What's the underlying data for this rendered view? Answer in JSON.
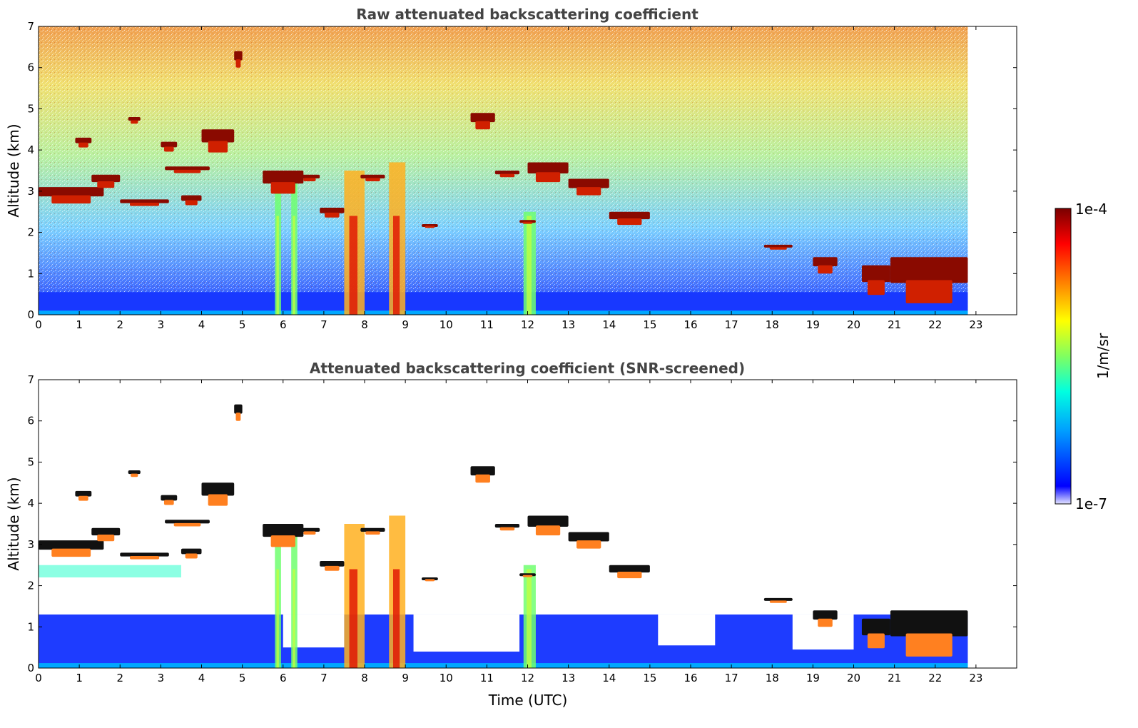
{
  "figure": {
    "xlabel": "Time (UTC)"
  },
  "chart_data": [
    {
      "type": "heatmap",
      "title": "Raw attenuated backscattering coefficient",
      "xlabel": "",
      "ylabel": "Altitude (km)",
      "xlim": [
        0,
        24
      ],
      "ylim": [
        0,
        7
      ],
      "x_ticks": [
        "0",
        "1",
        "2",
        "3",
        "4",
        "5",
        "6",
        "7",
        "8",
        "9",
        "10",
        "11",
        "12",
        "13",
        "14",
        "15",
        "16",
        "17",
        "18",
        "19",
        "20",
        "21",
        "22",
        "23"
      ],
      "y_ticks": [
        "0",
        "1",
        "2",
        "3",
        "4",
        "5",
        "6",
        "7"
      ],
      "data_extent_hours": 22.8,
      "colorscale": "log",
      "clouds": [
        {
          "x": [
            0.0,
            1.6
          ],
          "y": [
            2.6,
            3.1
          ]
        },
        {
          "x": [
            0.9,
            1.3
          ],
          "y": [
            4.0,
            4.3
          ]
        },
        {
          "x": [
            1.3,
            2.0
          ],
          "y": [
            3.0,
            3.4
          ]
        },
        {
          "x": [
            2.0,
            3.2
          ],
          "y": [
            2.6,
            2.8
          ]
        },
        {
          "x": [
            2.2,
            2.5
          ],
          "y": [
            4.6,
            4.8
          ]
        },
        {
          "x": [
            3.0,
            3.4
          ],
          "y": [
            3.9,
            4.2
          ]
        },
        {
          "x": [
            3.1,
            4.2
          ],
          "y": [
            3.4,
            3.6
          ]
        },
        {
          "x": [
            3.5,
            4.0
          ],
          "y": [
            2.6,
            2.9
          ]
        },
        {
          "x": [
            4.0,
            4.8
          ],
          "y": [
            3.8,
            4.5
          ]
        },
        {
          "x": [
            4.8,
            5.0
          ],
          "y": [
            5.9,
            6.4
          ]
        },
        {
          "x": [
            5.5,
            6.5
          ],
          "y": [
            2.8,
            3.5
          ]
        },
        {
          "x": [
            6.4,
            6.9
          ],
          "y": [
            3.2,
            3.4
          ]
        },
        {
          "x": [
            6.9,
            7.5
          ],
          "y": [
            2.3,
            2.6
          ]
        },
        {
          "x": [
            7.9,
            8.5
          ],
          "y": [
            3.2,
            3.4
          ]
        },
        {
          "x": [
            9.4,
            9.8
          ],
          "y": [
            2.1,
            2.2
          ]
        },
        {
          "x": [
            10.6,
            11.2
          ],
          "y": [
            4.4,
            4.9
          ]
        },
        {
          "x": [
            11.2,
            11.8
          ],
          "y": [
            3.3,
            3.5
          ]
        },
        {
          "x": [
            11.8,
            12.2
          ],
          "y": [
            2.2,
            2.3
          ]
        },
        {
          "x": [
            12.0,
            13.0
          ],
          "y": [
            3.1,
            3.7
          ]
        },
        {
          "x": [
            13.0,
            14.0
          ],
          "y": [
            2.8,
            3.3
          ]
        },
        {
          "x": [
            14.0,
            15.0
          ],
          "y": [
            2.1,
            2.5
          ]
        },
        {
          "x": [
            17.8,
            18.5
          ],
          "y": [
            1.55,
            1.7
          ]
        },
        {
          "x": [
            19.0,
            19.6
          ],
          "y": [
            0.9,
            1.4
          ]
        },
        {
          "x": [
            20.2,
            20.9
          ],
          "y": [
            0.3,
            1.2
          ]
        },
        {
          "x": [
            20.9,
            22.8
          ],
          "y": [
            0.0,
            1.4
          ]
        }
      ],
      "fallstreaks": [
        {
          "x": 7.5,
          "w": 0.5,
          "top": 3.5
        },
        {
          "x": 8.6,
          "w": 0.4,
          "top": 3.7
        },
        {
          "x": 11.9,
          "w": 0.3,
          "top": 2.5
        },
        {
          "x": 5.8,
          "w": 0.15,
          "top": 3.2
        },
        {
          "x": 6.2,
          "w": 0.15,
          "top": 3.3
        }
      ]
    },
    {
      "type": "heatmap",
      "title": "Attenuated backscattering coefficient (SNR-screened)",
      "xlabel": "Time (UTC)",
      "ylabel": "Altitude (km)",
      "xlim": [
        0,
        24
      ],
      "ylim": [
        0,
        7
      ],
      "x_ticks": [
        "0",
        "1",
        "2",
        "3",
        "4",
        "5",
        "6",
        "7",
        "8",
        "9",
        "10",
        "11",
        "12",
        "13",
        "14",
        "15",
        "16",
        "17",
        "18",
        "19",
        "20",
        "21",
        "22",
        "23"
      ],
      "y_ticks": [
        "0",
        "1",
        "2",
        "3",
        "4",
        "5",
        "6",
        "7"
      ],
      "data_extent_hours": 22.8,
      "colorscale": "log"
    }
  ],
  "colorbar": {
    "max_label": "1e-4",
    "min_label": "1e-7",
    "unit_label": "1/m/sr",
    "colormap": "jet",
    "colors": [
      "#e4e4ff",
      "#0000ff",
      "#00a0ff",
      "#00ffe0",
      "#80ff60",
      "#ffff00",
      "#ff8000",
      "#ff0000",
      "#7a0000"
    ]
  }
}
